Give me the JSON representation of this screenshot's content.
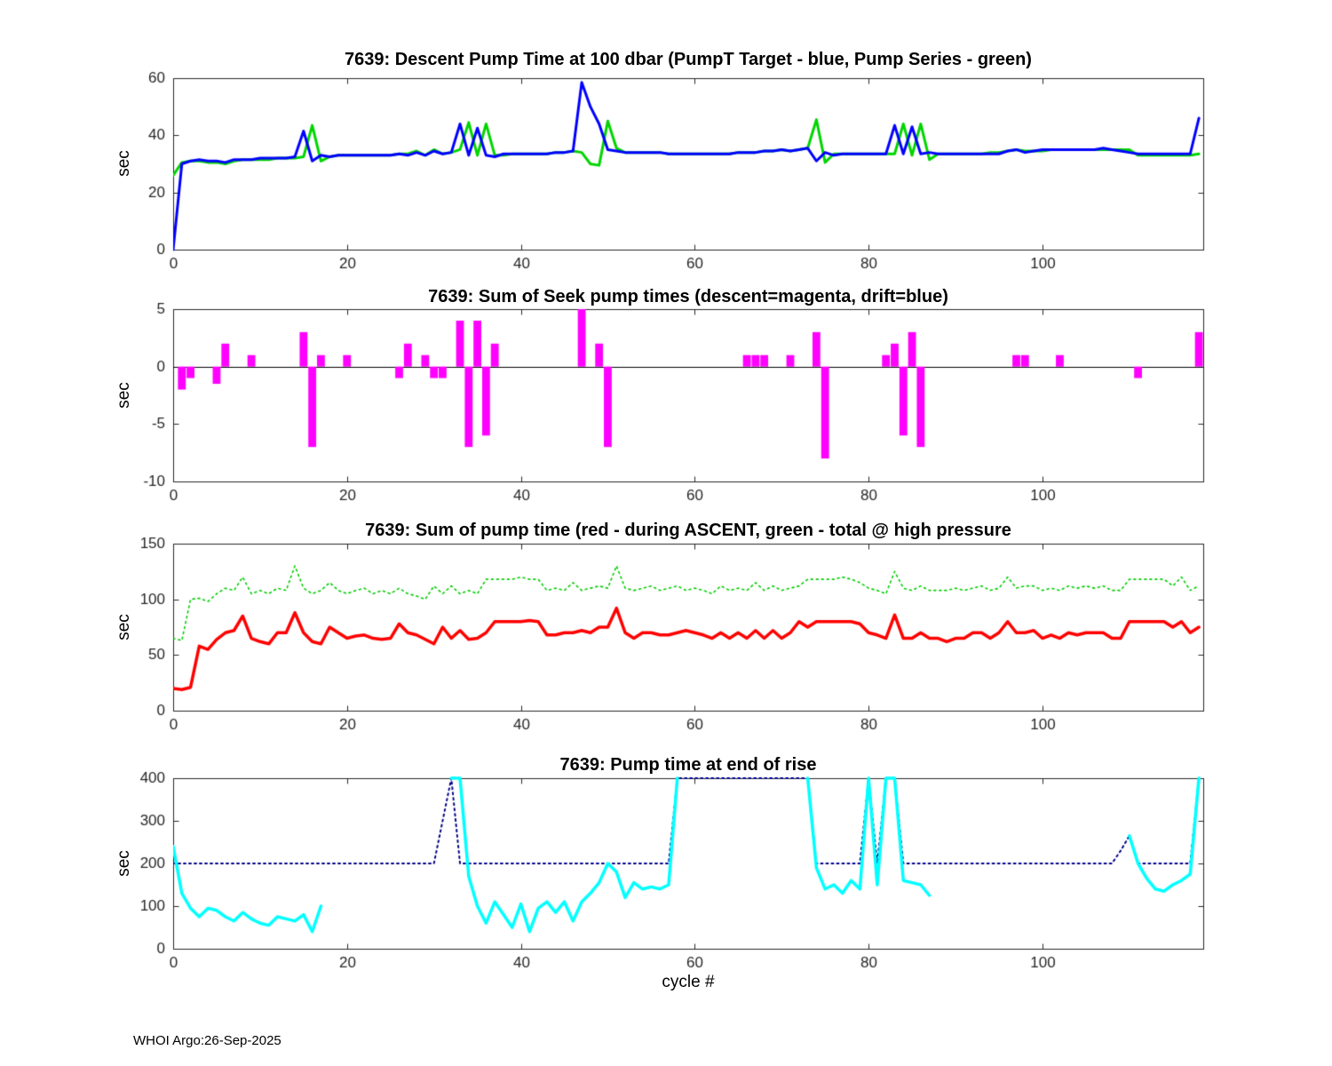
{
  "page": {
    "footer_text": "WHOI Argo:26-Sep-2025"
  },
  "chart_data": [
    {
      "type": "line",
      "title": "7639: Descent Pump Time at 100 dbar (PumpT Target - blue, Pump Series - green)",
      "ylabel": "sec",
      "xlim": [
        0,
        118.5
      ],
      "ylim": [
        0,
        60
      ],
      "xticks": [
        0,
        20,
        40,
        60,
        80,
        100
      ],
      "yticks": [
        0,
        20,
        40,
        60
      ],
      "series": [
        {
          "name": "Pump Series",
          "color": "#00d500",
          "style": "solid",
          "width": 3,
          "y": [
            26,
            30.5,
            31,
            31,
            30.5,
            30.5,
            30,
            31,
            31.5,
            31.5,
            31.5,
            31.5,
            32,
            32,
            32,
            32.5,
            43.5,
            31,
            32.5,
            33,
            33,
            33,
            33,
            33,
            33,
            33,
            33.5,
            33.5,
            34.5,
            33,
            35,
            33.5,
            34,
            35,
            44.5,
            33,
            44,
            33,
            33,
            33.5,
            33.5,
            33.5,
            33.5,
            33.5,
            34,
            34,
            34.5,
            34,
            30,
            29.5,
            45,
            35.5,
            34,
            34,
            34,
            34,
            34,
            33.5,
            33.5,
            33.5,
            33.5,
            33.5,
            33.5,
            33.5,
            33.5,
            34,
            34,
            34,
            34.5,
            34.5,
            35,
            34.5,
            35,
            35.5,
            45.5,
            30.5,
            33.5,
            33.5,
            33.5,
            33.5,
            33.5,
            33.5,
            33.5,
            33.5,
            44,
            33,
            44,
            31.5,
            33.5,
            33.5,
            33.5,
            33.5,
            33.5,
            33.5,
            34,
            34,
            34.5,
            35,
            34.5,
            34.5,
            34.5,
            35,
            35,
            35,
            35,
            35,
            35,
            35,
            35,
            35,
            35,
            33,
            33,
            33,
            33,
            33,
            33,
            33,
            33.5
          ]
        },
        {
          "name": "PumpT Target",
          "color": "#0000ff",
          "style": "solid",
          "width": 3,
          "y": [
            0,
            30,
            31,
            31.5,
            31,
            31,
            30.5,
            31.5,
            31.5,
            31.5,
            32,
            32,
            32,
            32,
            32.5,
            41.5,
            31,
            33,
            32.5,
            33,
            33,
            33,
            33,
            33,
            33,
            33,
            33.5,
            33,
            34,
            33,
            34.5,
            33.5,
            34,
            44,
            33,
            42.5,
            33,
            32.5,
            33.5,
            33.5,
            33.5,
            33.5,
            33.5,
            33.5,
            34,
            34,
            34.5,
            58.5,
            50,
            44,
            35,
            34.5,
            34,
            34,
            34,
            34,
            34,
            33.5,
            33.5,
            33.5,
            33.5,
            33.5,
            33.5,
            33.5,
            33.5,
            34,
            34,
            34,
            34.5,
            34.5,
            35,
            34.5,
            35,
            35.5,
            31,
            34,
            33,
            33.5,
            33.5,
            33.5,
            33.5,
            33.5,
            33.5,
            43.5,
            33.5,
            43,
            33.5,
            34,
            33.5,
            33.5,
            33.5,
            33.5,
            33.5,
            33.5,
            33.5,
            33.5,
            34.5,
            35,
            34,
            34.5,
            35,
            35,
            35,
            35,
            35,
            35,
            35,
            35.5,
            35,
            34.5,
            34,
            33.5,
            33.5,
            33.5,
            33.5,
            33.5,
            33.5,
            33.5,
            46
          ]
        }
      ]
    },
    {
      "type": "bar",
      "title": "7639: Sum of Seek pump times (descent=magenta, drift=blue)",
      "ylabel": "sec",
      "xlim": [
        0,
        118.5
      ],
      "ylim": [
        -10,
        5
      ],
      "xticks": [
        0,
        20,
        40,
        60,
        80,
        100
      ],
      "yticks": [
        -10,
        -5,
        0,
        5
      ],
      "bar_width": 0.9,
      "series": [
        {
          "name": "descent",
          "color": "#ff00ff",
          "points": [
            [
              1,
              -2
            ],
            [
              2,
              -1
            ],
            [
              5,
              -1.5
            ],
            [
              6,
              2
            ],
            [
              9,
              1
            ],
            [
              15,
              3
            ],
            [
              16,
              -7
            ],
            [
              17,
              1
            ],
            [
              20,
              1
            ],
            [
              26,
              -1
            ],
            [
              27,
              2
            ],
            [
              29,
              1
            ],
            [
              30,
              -1
            ],
            [
              31,
              -1
            ],
            [
              33,
              4
            ],
            [
              34,
              -7
            ],
            [
              35,
              4
            ],
            [
              36,
              -6
            ],
            [
              37,
              2
            ],
            [
              47,
              5
            ],
            [
              49,
              2
            ],
            [
              50,
              -7
            ],
            [
              66,
              1
            ],
            [
              67,
              1
            ],
            [
              68,
              1
            ],
            [
              71,
              1
            ],
            [
              74,
              3
            ],
            [
              75,
              -8
            ],
            [
              82,
              1
            ],
            [
              83,
              2
            ],
            [
              84,
              -6
            ],
            [
              85,
              3
            ],
            [
              86,
              -7
            ],
            [
              97,
              1
            ],
            [
              98,
              1
            ],
            [
              102,
              1
            ],
            [
              111,
              -1
            ],
            [
              118,
              3
            ]
          ]
        }
      ]
    },
    {
      "type": "line",
      "title": "7639: Sum of pump time (red - during ASCENT, green - total @ high pressure",
      "ylabel": "sec",
      "xlim": [
        0,
        118.5
      ],
      "ylim": [
        0,
        150
      ],
      "xticks": [
        0,
        20,
        40,
        60,
        80,
        100
      ],
      "yticks": [
        0,
        50,
        100,
        150
      ],
      "series": [
        {
          "name": "total @ high pressure",
          "color": "#00cc00",
          "style": "dotted",
          "width": 1.6,
          "y": [
            65,
            63,
            100,
            101,
            98,
            105,
            110,
            108,
            120,
            105,
            108,
            105,
            110,
            108,
            130,
            110,
            105,
            108,
            115,
            108,
            105,
            108,
            110,
            105,
            108,
            105,
            110,
            105,
            103,
            100,
            112,
            105,
            112,
            105,
            108,
            105,
            118,
            118,
            118,
            118,
            120,
            118,
            118,
            108,
            110,
            108,
            115,
            108,
            110,
            112,
            110,
            130,
            110,
            108,
            110,
            112,
            108,
            110,
            112,
            108,
            110,
            108,
            105,
            112,
            108,
            110,
            108,
            115,
            108,
            112,
            108,
            110,
            112,
            118,
            118,
            118,
            118,
            120,
            118,
            115,
            110,
            108,
            105,
            125,
            110,
            108,
            112,
            108,
            108,
            108,
            110,
            108,
            110,
            112,
            108,
            110,
            120,
            110,
            112,
            112,
            108,
            110,
            108,
            112,
            110,
            112,
            110,
            112,
            108,
            108,
            118,
            118,
            118,
            118,
            118,
            112,
            120,
            108,
            112
          ]
        },
        {
          "name": "during ASCENT",
          "color": "#ff0000",
          "style": "solid",
          "width": 3.5,
          "y": [
            20,
            19,
            21,
            58,
            55,
            64,
            70,
            72,
            85,
            65,
            62,
            60,
            70,
            70,
            88,
            70,
            62,
            60,
            75,
            70,
            65,
            67,
            68,
            65,
            64,
            65,
            78,
            70,
            68,
            64,
            60,
            75,
            65,
            72,
            64,
            65,
            70,
            80,
            80,
            80,
            80,
            81,
            80,
            68,
            68,
            70,
            70,
            72,
            70,
            75,
            75,
            92,
            70,
            65,
            70,
            70,
            68,
            68,
            70,
            72,
            70,
            68,
            65,
            70,
            65,
            70,
            65,
            72,
            65,
            72,
            65,
            70,
            80,
            75,
            80,
            80,
            80,
            80,
            80,
            78,
            70,
            68,
            65,
            86,
            65,
            65,
            70,
            65,
            65,
            62,
            65,
            65,
            70,
            70,
            65,
            70,
            80,
            70,
            70,
            72,
            65,
            68,
            65,
            70,
            68,
            70,
            70,
            70,
            65,
            65,
            80,
            80,
            80,
            80,
            80,
            75,
            80,
            70,
            75
          ]
        }
      ]
    },
    {
      "type": "line",
      "title": "7639: Pump time at end of rise",
      "ylabel": "sec",
      "xlabel": "cycle #",
      "xlim": [
        0,
        118.5
      ],
      "ylim": [
        0,
        400
      ],
      "xticks": [
        0,
        20,
        40,
        60,
        80,
        100
      ],
      "yticks": [
        0,
        100,
        200,
        300,
        400
      ],
      "series": [
        {
          "name": "blue_dotted",
          "color": "#00008b",
          "style": "dotted",
          "width": 2,
          "y": [
            200,
            200,
            200,
            200,
            200,
            200,
            200,
            200,
            200,
            200,
            200,
            200,
            200,
            200,
            200,
            200,
            200,
            200,
            200,
            200,
            200,
            200,
            200,
            200,
            200,
            200,
            200,
            200,
            200,
            200,
            200,
            300,
            400,
            200,
            200,
            200,
            200,
            200,
            200,
            200,
            200,
            200,
            200,
            200,
            200,
            200,
            200,
            200,
            200,
            200,
            200,
            200,
            200,
            200,
            200,
            200,
            200,
            200,
            400,
            400,
            400,
            400,
            400,
            400,
            400,
            400,
            400,
            400,
            400,
            400,
            400,
            400,
            400,
            400,
            200,
            200,
            200,
            200,
            200,
            200,
            400,
            200,
            400,
            400,
            200,
            200,
            200,
            200,
            200,
            200,
            200,
            200,
            200,
            200,
            200,
            200,
            200,
            200,
            200,
            200,
            200,
            200,
            200,
            200,
            200,
            200,
            200,
            200,
            200,
            230,
            265,
            200,
            200,
            200,
            200,
            200,
            200,
            200,
            400
          ]
        },
        {
          "name": "cyan_solid",
          "color": "#00ffff",
          "style": "solid",
          "width": 3.5,
          "y": [
            240,
            130,
            95,
            75,
            95,
            90,
            75,
            65,
            85,
            70,
            60,
            55,
            75,
            70,
            65,
            80,
            40,
            100,
            null,
            null,
            null,
            null,
            null,
            null,
            null,
            null,
            null,
            null,
            null,
            null,
            null,
            null,
            400,
            400,
            170,
            100,
            60,
            110,
            80,
            50,
            105,
            40,
            95,
            110,
            85,
            110,
            65,
            110,
            130,
            155,
            200,
            180,
            120,
            155,
            140,
            145,
            140,
            150,
            400,
            null,
            null,
            null,
            null,
            null,
            null,
            null,
            null,
            null,
            null,
            null,
            null,
            null,
            null,
            400,
            190,
            140,
            150,
            130,
            160,
            140,
            400,
            150,
            400,
            400,
            160,
            155,
            150,
            125,
            null,
            null,
            null,
            null,
            null,
            null,
            null,
            null,
            null,
            null,
            null,
            null,
            null,
            null,
            null,
            null,
            null,
            null,
            null,
            null,
            null,
            null,
            265,
            200,
            165,
            140,
            135,
            150,
            160,
            175,
            400
          ]
        }
      ]
    }
  ]
}
